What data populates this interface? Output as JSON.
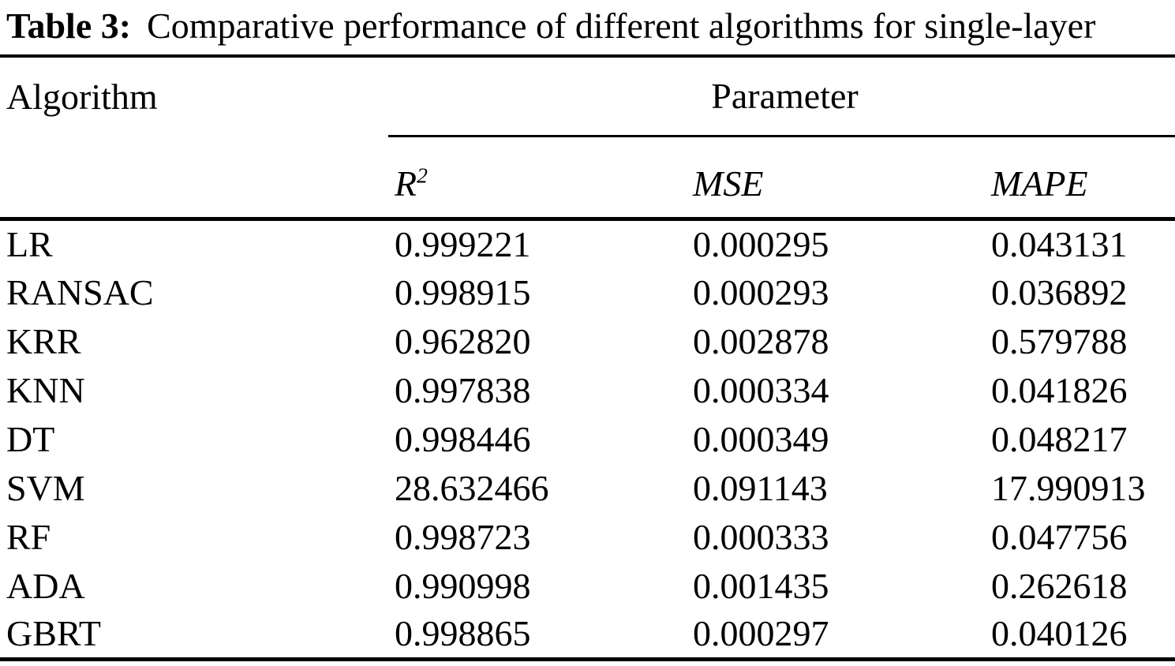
{
  "caption": {
    "label": "Table 3:",
    "text": "Comparative performance of different algorithms for single-layer"
  },
  "table": {
    "col1_header": "Algorithm",
    "group_header": "Parameter",
    "param_columns": [
      {
        "label": "R",
        "sup": "2"
      },
      {
        "label": "MSE",
        "sup": ""
      },
      {
        "label": "MAPE",
        "sup": ""
      }
    ],
    "rows": [
      {
        "algorithm": "LR",
        "r2": "0.999221",
        "mse": "0.000295",
        "mape": "0.043131"
      },
      {
        "algorithm": "RANSAC",
        "r2": "0.998915",
        "mse": "0.000293",
        "mape": "0.036892"
      },
      {
        "algorithm": "KRR",
        "r2": "0.962820",
        "mse": "0.002878",
        "mape": "0.579788"
      },
      {
        "algorithm": "KNN",
        "r2": "0.997838",
        "mse": "0.000334",
        "mape": "0.041826"
      },
      {
        "algorithm": "DT",
        "r2": "0.998446",
        "mse": "0.000349",
        "mape": "0.048217"
      },
      {
        "algorithm": "SVM",
        "r2": "28.632466",
        "mse": "0.091143",
        "mape": "17.990913"
      },
      {
        "algorithm": "RF",
        "r2": "0.998723",
        "mse": "0.000333",
        "mape": "0.047756"
      },
      {
        "algorithm": "ADA",
        "r2": "0.990998",
        "mse": "0.001435",
        "mape": "0.262618"
      },
      {
        "algorithm": "GBRT",
        "r2": "0.998865",
        "mse": "0.000297",
        "mape": "0.040126"
      }
    ],
    "colors": {
      "text": "#000000",
      "background": "#ffffff",
      "rule": "#000000"
    }
  }
}
